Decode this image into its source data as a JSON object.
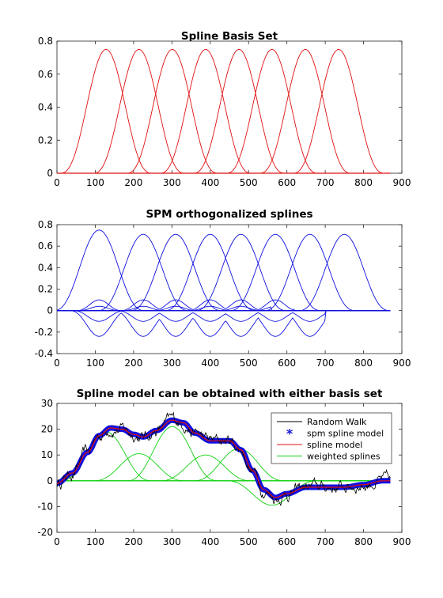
{
  "chart_data": [
    {
      "type": "line",
      "title": "Spline Basis Set",
      "xlabel": "",
      "ylabel": "",
      "xlim": [
        0,
        900
      ],
      "ylim": [
        0,
        0.8
      ],
      "xticks": [
        "0",
        "100",
        "200",
        "300",
        "400",
        "500",
        "600",
        "700",
        "800",
        "900"
      ],
      "yticks": [
        "0",
        "0.2",
        "0.4",
        "0.6",
        "0.8"
      ],
      "grid": false,
      "line_color": "#e01010",
      "basis_centers": [
        128,
        214,
        301,
        388,
        475,
        561,
        648,
        735
      ],
      "basis_half_width": 120,
      "basis_peak": 0.75,
      "x_end": 870
    },
    {
      "type": "line",
      "title": "SPM orthogonalized splines",
      "xlabel": "",
      "ylabel": "",
      "xlim": [
        0,
        900
      ],
      "ylim": [
        -0.4,
        0.8
      ],
      "xticks": [
        "0",
        "100",
        "200",
        "300",
        "400",
        "500",
        "600",
        "700",
        "800",
        "900"
      ],
      "yticks": [
        "-0.4",
        "-0.2",
        "0",
        "0.2",
        "0.4",
        "0.6",
        "0.8"
      ],
      "grid": false,
      "line_color": "#1010e0",
      "basis_centers": [
        110,
        225,
        310,
        400,
        480,
        570,
        660,
        750
      ],
      "basis_half_width": 120,
      "peaks": [
        0.75,
        0.71,
        0.71,
        0.71,
        0.71,
        0.71,
        0.71,
        0.71
      ],
      "negative_lobe": -0.24,
      "small_lobe": 0.1,
      "x_end": 870
    },
    {
      "type": "line",
      "title": "Spline model can be obtained with either basis set",
      "xlabel": "",
      "ylabel": "",
      "xlim": [
        0,
        900
      ],
      "ylim": [
        -20,
        30
      ],
      "xticks": [
        "0",
        "100",
        "200",
        "300",
        "400",
        "500",
        "600",
        "700",
        "800",
        "900"
      ],
      "yticks": [
        "-20",
        "-10",
        "0",
        "10",
        "20",
        "30"
      ],
      "grid": false,
      "legend_position": "top-right",
      "legend": [
        {
          "label": "Random Walk",
          "color": "#000000",
          "marker": "line"
        },
        {
          "label": "spm spline model",
          "color": "#1010e0",
          "marker": "asterisk"
        },
        {
          "label": "spline model",
          "color": "#e01010",
          "marker": "line"
        },
        {
          "label": "weighted splines",
          "color": "#10d010",
          "marker": "line"
        }
      ],
      "weighted_splines": [
        {
          "center": 128,
          "weight": 19
        },
        {
          "center": 214,
          "weight": 10.5
        },
        {
          "center": 301,
          "weight": 21
        },
        {
          "center": 388,
          "weight": 10
        },
        {
          "center": 475,
          "weight": 12.5
        },
        {
          "center": 561,
          "weight": -9.5
        },
        {
          "center": 648,
          "weight": 0
        },
        {
          "center": 735,
          "weight": 0
        }
      ],
      "basis_half_width": 120,
      "model_points": [
        [
          0,
          -1
        ],
        [
          40,
          3
        ],
        [
          80,
          11
        ],
        [
          110,
          17.5
        ],
        [
          140,
          20.5
        ],
        [
          170,
          20
        ],
        [
          200,
          18
        ],
        [
          225,
          17
        ],
        [
          260,
          19.5
        ],
        [
          300,
          23.5
        ],
        [
          330,
          22.5
        ],
        [
          360,
          18.5
        ],
        [
          400,
          15.5
        ],
        [
          450,
          15.5
        ],
        [
          480,
          12
        ],
        [
          510,
          4
        ],
        [
          540,
          -3.5
        ],
        [
          570,
          -6.5
        ],
        [
          600,
          -5
        ],
        [
          650,
          -2.5
        ],
        [
          700,
          -2.5
        ],
        [
          750,
          -2.5
        ],
        [
          800,
          -1.5
        ],
        [
          850,
          0
        ],
        [
          870,
          0
        ]
      ],
      "x_end": 870
    }
  ]
}
